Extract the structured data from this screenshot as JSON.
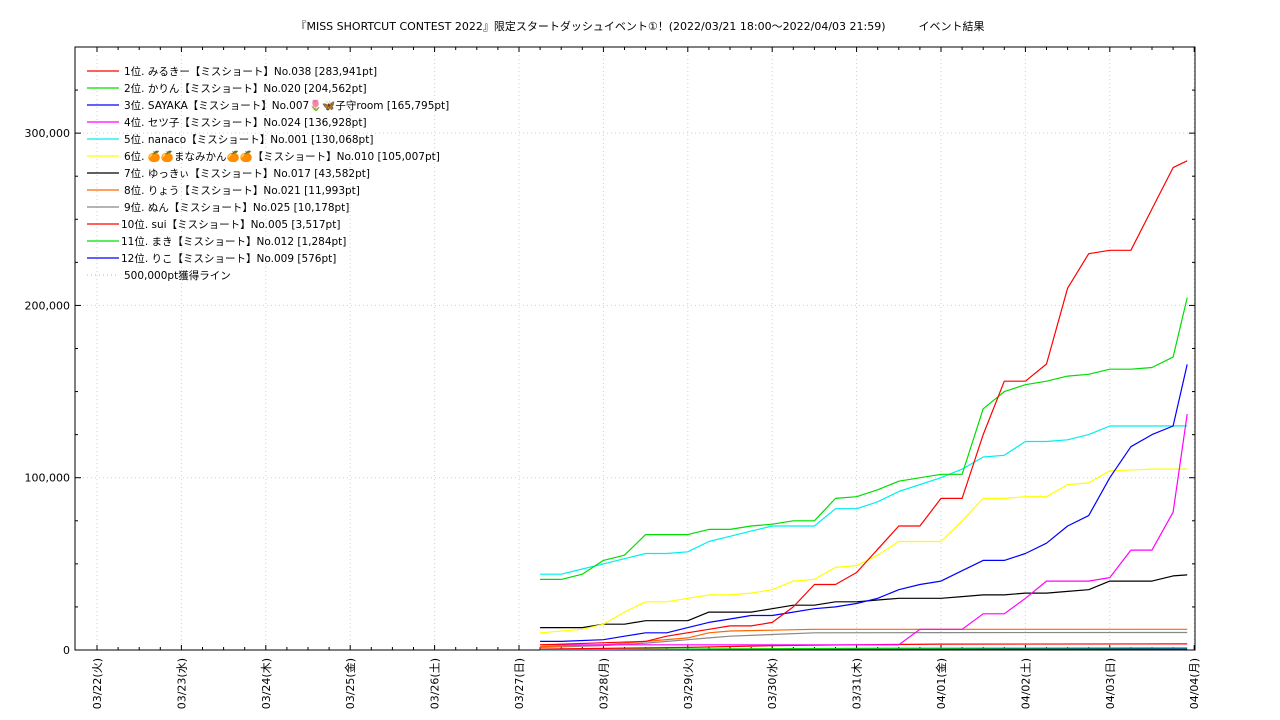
{
  "chart_data": {
    "type": "line",
    "title": "『MISS SHORTCUT CONTEST 2022』限定スタートダッシュイベント①！(2022/03/21 18:00〜2022/04/03 21:59)　　　イベント結果",
    "xlabel": "",
    "ylabel": "",
    "x_ticks": [
      "03/22(火)",
      "03/23(水)",
      "03/24(木)",
      "03/25(金)",
      "03/26(土)",
      "03/27(日)",
      "03/28(月)",
      "03/29(火)",
      "03/30(水)",
      "03/31(木)",
      "04/01(金)",
      "04/02(土)",
      "04/03(日)",
      "04/04(月)"
    ],
    "y_ticks": [
      "0",
      "100,000",
      "200,000",
      "300,000"
    ],
    "ylim": [
      0,
      350000
    ],
    "grid": true,
    "legend_position": "top-left",
    "series": [
      {
        "name": "1位. みるきー【ミスショート】No.038 [283,941pt]",
        "color": "#ff0000",
        "x": [
          "03/27 06:00",
          "03/28 12:00",
          "03/28 18:00",
          "03/29 06:00",
          "03/29 12:00",
          "03/29 18:00",
          "03/30 00:00",
          "03/30 06:00",
          "03/30 12:00",
          "03/30 18:00",
          "03/31 00:00",
          "03/31 12:00",
          "03/31 18:00",
          "04/01 00:00",
          "04/01 06:00",
          "04/01 12:00",
          "04/01 18:00",
          "04/02 00:00",
          "04/02 06:00",
          "04/02 12:00",
          "04/02 18:00",
          "04/03 00:00",
          "04/03 06:00",
          "04/03 12:00",
          "04/03 18:00",
          "04/03 22:00"
        ],
        "y": [
          3000,
          5000,
          8000,
          12000,
          14000,
          14000,
          16000,
          25000,
          38000,
          38000,
          45000,
          72000,
          72000,
          88000,
          88000,
          125000,
          156000,
          156000,
          166000,
          210000,
          230000,
          232000,
          232000,
          256000,
          280000,
          283941
        ]
      },
      {
        "name": "2位. かりん【ミスショート】No.020 [204,562pt]",
        "color": "#00dd00",
        "x": [
          "03/27 06:00",
          "03/27 12:00",
          "03/27 18:00",
          "03/28 00:00",
          "03/28 06:00",
          "03/28 12:00",
          "03/28 18:00",
          "03/29 00:00",
          "03/29 06:00",
          "03/29 12:00",
          "03/29 18:00",
          "03/30 00:00",
          "03/30 06:00",
          "03/30 12:00",
          "03/30 18:00",
          "03/31 00:00",
          "03/31 06:00",
          "03/31 12:00",
          "04/01 00:00",
          "04/01 06:00",
          "04/01 12:00",
          "04/01 18:00",
          "04/02 00:00",
          "04/02 06:00",
          "04/02 12:00",
          "04/02 18:00",
          "04/03 00:00",
          "04/03 06:00",
          "04/03 12:00",
          "04/03 18:00",
          "04/03 22:00"
        ],
        "y": [
          41000,
          41000,
          44000,
          52000,
          55000,
          67000,
          67000,
          67000,
          70000,
          70000,
          72000,
          73000,
          75000,
          75000,
          88000,
          89000,
          93000,
          98000,
          102000,
          102000,
          140000,
          150000,
          154000,
          156000,
          159000,
          160000,
          163000,
          163000,
          164000,
          170000,
          204562
        ]
      },
      {
        "name": "3位. SAYAKA【ミスショート】No.007🌷🦋子守room [165,795pt]",
        "color": "#0000ff",
        "x": [
          "03/27 06:00",
          "03/27 12:00",
          "03/28 00:00",
          "03/28 06:00",
          "03/28 12:00",
          "03/28 18:00",
          "03/29 00:00",
          "03/29 06:00",
          "03/29 12:00",
          "03/29 18:00",
          "03/30 00:00",
          "03/30 06:00",
          "03/30 12:00",
          "03/30 18:00",
          "03/31 00:00",
          "03/31 06:00",
          "03/31 12:00",
          "03/31 18:00",
          "04/01 00:00",
          "04/01 06:00",
          "04/01 12:00",
          "04/01 18:00",
          "04/02 00:00",
          "04/02 06:00",
          "04/02 12:00",
          "04/02 18:00",
          "04/03 00:00",
          "04/03 06:00",
          "04/03 12:00",
          "04/03 18:00",
          "04/03 22:00"
        ],
        "y": [
          5000,
          5000,
          6000,
          8000,
          10000,
          10000,
          13000,
          16000,
          18000,
          20000,
          20000,
          22000,
          24000,
          25000,
          27000,
          30000,
          35000,
          38000,
          40000,
          46000,
          52000,
          52000,
          56000,
          62000,
          72000,
          78000,
          100000,
          118000,
          125000,
          130000,
          165795
        ]
      },
      {
        "name": "4位. セツ子【ミスショート】No.024 [136,928pt]",
        "color": "#ff00ff",
        "x": [
          "03/27 06:00",
          "03/28 06:00",
          "03/29 06:00",
          "03/30 06:00",
          "03/31 00:00",
          "03/31 12:00",
          "03/31 18:00",
          "04/01 00:00",
          "04/01 06:00",
          "04/01 12:00",
          "04/01 18:00",
          "04/02 00:00",
          "04/02 06:00",
          "04/02 12:00",
          "04/02 18:00",
          "04/03 00:00",
          "04/03 06:00",
          "04/03 12:00",
          "04/03 18:00",
          "04/03 22:00"
        ],
        "y": [
          3000,
          3000,
          3000,
          3000,
          3000,
          3000,
          12000,
          12000,
          12000,
          21000,
          21000,
          30000,
          40000,
          40000,
          40000,
          42000,
          58000,
          58000,
          80000,
          136928
        ]
      },
      {
        "name": "5位. nanaco【ミスショート】No.001 [130,068pt]",
        "color": "#00eeee",
        "x": [
          "03/27 06:00",
          "03/27 12:00",
          "03/27 18:00",
          "03/28 00:00",
          "03/28 06:00",
          "03/28 12:00",
          "03/28 18:00",
          "03/29 00:00",
          "03/29 06:00",
          "03/29 12:00",
          "03/29 18:00",
          "03/30 00:00",
          "03/30 06:00",
          "03/30 12:00",
          "03/30 18:00",
          "03/31 00:00",
          "03/31 06:00",
          "03/31 12:00",
          "04/01 00:00",
          "04/01 06:00",
          "04/01 12:00",
          "04/01 18:00",
          "04/02 00:00",
          "04/02 06:00",
          "04/02 12:00",
          "04/02 18:00",
          "04/03 00:00",
          "04/03 12:00",
          "04/03 22:00"
        ],
        "y": [
          44000,
          44000,
          47000,
          50000,
          53000,
          56000,
          56000,
          57000,
          63000,
          66000,
          69000,
          72000,
          72000,
          72000,
          82000,
          82000,
          86000,
          92000,
          100000,
          105000,
          112000,
          113000,
          121000,
          121000,
          122000,
          125000,
          130000,
          130000,
          130068
        ]
      },
      {
        "name": "6位. 🍊🍊まなみかん🍊🍊【ミスショート】No.010 [105,007pt]",
        "color": "#ffff00",
        "x": [
          "03/27 06:00",
          "03/27 18:00",
          "03/28 00:00",
          "03/28 06:00",
          "03/28 12:00",
          "03/28 18:00",
          "03/29 00:00",
          "03/29 06:00",
          "03/29 12:00",
          "03/29 18:00",
          "03/30 00:00",
          "03/30 06:00",
          "03/30 12:00",
          "03/30 18:00",
          "03/31 00:00",
          "03/31 06:00",
          "03/31 12:00",
          "03/31 18:00",
          "04/01 00:00",
          "04/01 06:00",
          "04/01 12:00",
          "04/01 18:00",
          "04/02 00:00",
          "04/02 06:00",
          "04/02 12:00",
          "04/02 18:00",
          "04/03 00:00",
          "04/03 12:00",
          "04/03 22:00"
        ],
        "y": [
          10000,
          12000,
          15000,
          22000,
          28000,
          28000,
          30000,
          32000,
          32000,
          33000,
          35000,
          40000,
          41000,
          48000,
          49000,
          55000,
          63000,
          63000,
          63000,
          75000,
          88000,
          88000,
          89000,
          89000,
          96000,
          97000,
          104000,
          105000,
          105007
        ]
      },
      {
        "name": "7位. ゆっきぃ【ミスショート】No.017 [43,582pt]",
        "color": "#000000",
        "x": [
          "03/27 06:00",
          "03/27 12:00",
          "03/27 18:00",
          "03/28 00:00",
          "03/28 06:00",
          "03/28 12:00",
          "03/28 18:00",
          "03/29 00:00",
          "03/29 06:00",
          "03/29 12:00",
          "03/29 18:00",
          "03/30 00:00",
          "03/30 06:00",
          "03/30 12:00",
          "03/30 18:00",
          "03/31 00:00",
          "03/31 06:00",
          "03/31 12:00",
          "03/31 18:00",
          "04/01 00:00",
          "04/01 06:00",
          "04/01 12:00",
          "04/01 18:00",
          "04/02 00:00",
          "04/02 06:00",
          "04/02 12:00",
          "04/02 18:00",
          "04/03 00:00",
          "04/03 06:00",
          "04/03 12:00",
          "04/03 18:00",
          "04/03 22:00"
        ],
        "y": [
          13000,
          13000,
          13000,
          15000,
          15000,
          17000,
          17000,
          17000,
          22000,
          22000,
          22000,
          24000,
          26000,
          26000,
          28000,
          28000,
          29000,
          30000,
          30000,
          30000,
          31000,
          32000,
          32000,
          33000,
          33000,
          34000,
          35000,
          40000,
          40000,
          40000,
          43000,
          43582
        ]
      },
      {
        "name": "8位. りょう【ミスショート】No.021 [11,993pt]",
        "color": "#ff6600",
        "x": [
          "03/27 06:00",
          "03/28 00:00",
          "03/28 12:00",
          "03/29 00:00",
          "03/29 06:00",
          "03/29 12:00",
          "03/30 00:00",
          "03/30 12:00",
          "03/31 00:00",
          "04/01 00:00",
          "04/02 00:00",
          "04/03 00:00",
          "04/03 22:00"
        ],
        "y": [
          2000,
          3000,
          5000,
          7000,
          10000,
          11000,
          11500,
          12000,
          12000,
          12000,
          12000,
          12000,
          11993
        ]
      },
      {
        "name": "9位. ぬん【ミスショート】No.025 [10,178pt]",
        "color": "#888888",
        "x": [
          "03/27 06:00",
          "03/28 00:00",
          "03/28 12:00",
          "03/29 00:00",
          "03/29 06:00",
          "03/29 12:00",
          "03/30 00:00",
          "03/30 12:00",
          "04/01 00:00",
          "04/03 22:00"
        ],
        "y": [
          1500,
          2500,
          4000,
          6000,
          7000,
          8000,
          9000,
          10000,
          10100,
          10178
        ]
      },
      {
        "name": "10位. sui【ミスショート】No.005 [3,517pt]",
        "color": "#ff0000",
        "x": [
          "03/27 06:00",
          "03/29 00:00",
          "03/30 00:00",
          "03/31 00:00",
          "04/01 00:00",
          "04/03 22:00"
        ],
        "y": [
          500,
          1500,
          2500,
          3000,
          3400,
          3517
        ]
      },
      {
        "name": "11位. まき【ミスショート】No.012 [1,284pt]",
        "color": "#00dd00",
        "x": [
          "03/27 06:00",
          "03/29 00:00",
          "03/31 00:00",
          "04/03 22:00"
        ],
        "y": [
          200,
          600,
          1000,
          1284
        ]
      },
      {
        "name": "12位. りこ【ミスショート】No.009 [576pt]",
        "color": "#0000ff",
        "x": [
          "03/27 06:00",
          "03/29 00:00",
          "03/31 00:00",
          "04/03 22:00"
        ],
        "y": [
          100,
          300,
          450,
          576
        ]
      }
    ],
    "reference_line": {
      "name": "500,000pt獲得ライン",
      "value": 500000,
      "color": "#ff9999",
      "style": "dotted"
    }
  }
}
